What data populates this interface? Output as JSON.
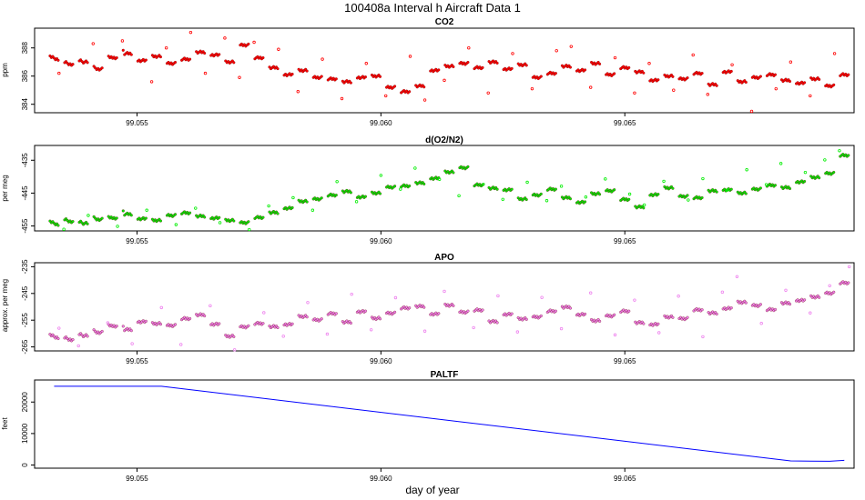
{
  "figure": {
    "title": "100408a   Interval h Aircraft Data 1",
    "xlabel": "day of year"
  },
  "chart_data": [
    {
      "type": "scatter",
      "title": "CO2",
      "ylabel": "ppm",
      "xlim": [
        99.0529,
        99.0697
      ],
      "ylim": [
        383.4,
        389.4
      ],
      "xticks": [
        99.055,
        99.06,
        99.065
      ],
      "xtick_labels": [
        "99.055",
        "99.060",
        "99.065"
      ],
      "yticks": [
        384,
        386,
        388
      ],
      "ytick_labels": [
        "384",
        "386",
        "388"
      ],
      "series": [
        {
          "color": "#ff0000",
          "points_x": [
            99.0533,
            99.0536,
            99.0539,
            99.0542,
            99.0545,
            99.0548,
            99.0551,
            99.0554,
            99.0557,
            99.056,
            99.0563,
            99.0566,
            99.0569,
            99.0572,
            99.0575,
            99.0578,
            99.0581,
            99.0584,
            99.0587,
            99.059,
            99.0593,
            99.0596,
            99.0599,
            99.0602,
            99.0605,
            99.0608,
            99.0611,
            99.0614,
            99.0617,
            99.062,
            99.0623,
            99.0626,
            99.0629,
            99.0632,
            99.0635,
            99.0638,
            99.0641,
            99.0644,
            99.0647,
            99.065,
            99.0653,
            99.0656,
            99.0659,
            99.0662,
            99.0665,
            99.0668,
            99.0671,
            99.0674,
            99.0677,
            99.068,
            99.0683,
            99.0686,
            99.0689,
            99.0692,
            99.0695
          ],
          "points_y": [
            387.2,
            386.8,
            387.0,
            386.5,
            387.3,
            387.6,
            387.1,
            387.4,
            386.9,
            387.2,
            387.7,
            387.5,
            387.0,
            388.2,
            387.3,
            386.6,
            386.1,
            386.4,
            385.9,
            385.8,
            385.6,
            385.9,
            386.0,
            385.2,
            384.9,
            385.3,
            386.4,
            386.7,
            386.9,
            386.6,
            387.0,
            386.5,
            386.8,
            385.9,
            386.2,
            386.7,
            386.4,
            386.9,
            386.1,
            386.6,
            386.3,
            385.7,
            386.0,
            385.8,
            386.2,
            385.4,
            386.3,
            385.6,
            385.9,
            386.1,
            385.7,
            385.5,
            385.8,
            385.3,
            386.1
          ],
          "outliers_x": [
            99.0534,
            99.0541,
            99.0547,
            99.0553,
            99.0556,
            99.0561,
            99.0564,
            99.0568,
            99.0571,
            99.0574,
            99.0579,
            99.0583,
            99.0588,
            99.0592,
            99.0597,
            99.0601,
            99.0606,
            99.0609,
            99.0613,
            99.0618,
            99.0622,
            99.0627,
            99.0631,
            99.0636,
            99.0639,
            99.0643,
            99.0648,
            99.0652,
            99.0655,
            99.066,
            99.0664,
            99.0667,
            99.0672,
            99.0676,
            99.0681,
            99.0684,
            99.0688,
            99.0693
          ],
          "outliers_y": [
            386.2,
            388.3,
            388.5,
            385.6,
            388.0,
            389.1,
            386.2,
            388.7,
            385.9,
            388.4,
            387.9,
            384.9,
            387.2,
            384.4,
            386.9,
            384.6,
            387.4,
            384.3,
            385.7,
            388.0,
            384.8,
            387.6,
            385.1,
            387.8,
            388.1,
            385.2,
            387.3,
            384.8,
            386.9,
            385.0,
            387.5,
            384.7,
            386.8,
            383.5,
            385.1,
            387.0,
            384.6,
            387.6
          ]
        }
      ]
    },
    {
      "type": "scatter",
      "title": "d(O2/N2)",
      "ylabel": "per meg",
      "xlim": [
        99.0529,
        99.0697
      ],
      "ylim": [
        -456.5,
        -430.5
      ],
      "xticks": [
        99.055,
        99.06,
        99.065
      ],
      "xtick_labels": [
        "99.055",
        "99.060",
        "99.065"
      ],
      "yticks": [
        -455,
        -445,
        -435
      ],
      "ytick_labels": [
        "-455",
        "-445",
        "-435"
      ],
      "series": [
        {
          "color": "#00ee00",
          "points_x": [
            99.0533,
            99.0536,
            99.0539,
            99.0542,
            99.0545,
            99.0548,
            99.0551,
            99.0554,
            99.0557,
            99.056,
            99.0563,
            99.0566,
            99.0569,
            99.0572,
            99.0575,
            99.0578,
            99.0581,
            99.0584,
            99.0587,
            99.059,
            99.0593,
            99.0596,
            99.0599,
            99.0602,
            99.0605,
            99.0608,
            99.0611,
            99.0614,
            99.0617,
            99.062,
            99.0623,
            99.0626,
            99.0629,
            99.0632,
            99.0635,
            99.0638,
            99.0641,
            99.0644,
            99.0647,
            99.065,
            99.0653,
            99.0656,
            99.0659,
            99.0662,
            99.0665,
            99.0668,
            99.0671,
            99.0674,
            99.0677,
            99.068,
            99.0683,
            99.0686,
            99.0689,
            99.0692,
            99.0695
          ],
          "points_y": [
            -454.5,
            -453.8,
            -454.2,
            -453.0,
            -452.6,
            -451.4,
            -452.8,
            -453.3,
            -451.8,
            -451.0,
            -452.0,
            -452.6,
            -453.3,
            -454.0,
            -452.4,
            -450.9,
            -449.6,
            -447.5,
            -446.8,
            -445.6,
            -444.5,
            -446.2,
            -445.0,
            -443.2,
            -442.8,
            -441.9,
            -440.5,
            -438.6,
            -437.3,
            -442.5,
            -443.5,
            -444.0,
            -446.8,
            -445.6,
            -443.8,
            -446.4,
            -447.8,
            -445.2,
            -444.3,
            -446.9,
            -449.2,
            -445.5,
            -443.4,
            -446.0,
            -446.4,
            -444.3,
            -444.0,
            -445.0,
            -443.8,
            -442.6,
            -443.3,
            -441.6,
            -440.2,
            -439.0,
            -433.5
          ],
          "outliers_x": [
            99.0535,
            99.054,
            99.0546,
            99.0552,
            99.0558,
            99.0562,
            99.0567,
            99.0573,
            99.0577,
            99.0582,
            99.0586,
            99.0591,
            99.0595,
            99.06,
            99.0604,
            99.0607,
            99.0612,
            99.0616,
            99.0621,
            99.0625,
            99.063,
            99.0634,
            99.0637,
            99.0642,
            99.0646,
            99.0651,
            99.0654,
            99.0658,
            99.0663,
            99.0666,
            99.0671,
            99.0675,
            99.0679,
            99.0682,
            99.0687,
            99.0691,
            99.0694
          ],
          "outliers_y": [
            -456.0,
            -451.8,
            -455.1,
            -450.2,
            -454.6,
            -449.6,
            -454.0,
            -456.1,
            -448.9,
            -446.4,
            -450.2,
            -441.5,
            -447.6,
            -439.6,
            -443.8,
            -437.4,
            -440.8,
            -445.8,
            -442.3,
            -446.9,
            -441.7,
            -447.3,
            -442.9,
            -446.2,
            -440.7,
            -445.3,
            -448.6,
            -441.4,
            -447.1,
            -440.6,
            -444.1,
            -437.9,
            -442.4,
            -436.0,
            -438.7,
            -434.9,
            -432.1
          ]
        }
      ]
    },
    {
      "type": "scatter",
      "title": "APO",
      "ylabel": "approx. per meg",
      "xlim": [
        99.0529,
        99.0697
      ],
      "ylim": [
        -266.5,
        -233.5
      ],
      "xticks": [
        99.055,
        99.06,
        99.065
      ],
      "xtick_labels": [
        "99.055",
        "99.060",
        "99.065"
      ],
      "yticks": [
        -265,
        -255,
        -245,
        -235
      ],
      "ytick_labels": [
        "-265",
        "-255",
        "-245",
        "-235"
      ],
      "series": [
        {
          "color": "#ee82ee",
          "points_x": [
            99.0533,
            99.0536,
            99.0539,
            99.0542,
            99.0545,
            99.0548,
            99.0551,
            99.0554,
            99.0557,
            99.056,
            99.0563,
            99.0566,
            99.0569,
            99.0572,
            99.0575,
            99.0578,
            99.0581,
            99.0584,
            99.0587,
            99.059,
            99.0593,
            99.0596,
            99.0599,
            99.0602,
            99.0605,
            99.0608,
            99.0611,
            99.0614,
            99.0617,
            99.062,
            99.0623,
            99.0626,
            99.0629,
            99.0632,
            99.0635,
            99.0638,
            99.0641,
            99.0644,
            99.0647,
            99.065,
            99.0653,
            99.0656,
            99.0659,
            99.0662,
            99.0665,
            99.0668,
            99.0671,
            99.0674,
            99.0677,
            99.068,
            99.0683,
            99.0686,
            99.0689,
            99.0692,
            99.0695
          ],
          "points_y": [
            -261.5,
            -262.5,
            -260.8,
            -259.6,
            -257.2,
            -258.5,
            -255.6,
            -256.3,
            -257.0,
            -254.4,
            -253.0,
            -256.5,
            -261.0,
            -257.5,
            -256.2,
            -257.4,
            -256.6,
            -253.6,
            -254.9,
            -252.5,
            -255.7,
            -251.8,
            -254.3,
            -252.4,
            -250.4,
            -249.8,
            -252.7,
            -249.4,
            -252.0,
            -251.2,
            -255.5,
            -252.8,
            -254.5,
            -253.8,
            -251.6,
            -250.1,
            -252.9,
            -255.2,
            -253.4,
            -251.6,
            -255.9,
            -256.6,
            -253.8,
            -254.4,
            -251.1,
            -252.3,
            -250.6,
            -248.3,
            -249.5,
            -251.0,
            -248.6,
            -247.6,
            -246.3,
            -244.9,
            -241.0
          ],
          "outliers_x": [
            99.0534,
            99.0538,
            99.0544,
            99.0549,
            99.0555,
            99.0559,
            99.0565,
            99.057,
            99.0576,
            99.058,
            99.0585,
            99.0589,
            99.0594,
            99.0598,
            99.0603,
            99.0609,
            99.0613,
            99.0619,
            99.0624,
            99.0628,
            99.0633,
            99.0637,
            99.0643,
            99.0648,
            99.0652,
            99.0657,
            99.0661,
            99.0666,
            99.067,
            99.0673,
            99.0678,
            99.0683,
            99.0688,
            99.0692,
            99.0696
          ],
          "outliers_y": [
            -258.0,
            -264.6,
            -256.0,
            -263.8,
            -250.3,
            -264.1,
            -249.6,
            -266.1,
            -252.2,
            -261.0,
            -248.4,
            -260.2,
            -245.3,
            -258.6,
            -246.6,
            -259.1,
            -244.2,
            -257.8,
            -245.9,
            -259.4,
            -246.5,
            -258.2,
            -244.8,
            -260.5,
            -247.5,
            -259.7,
            -246.0,
            -261.2,
            -244.5,
            -238.7,
            -256.2,
            -243.8,
            -252.3,
            -242.1,
            -235.0
          ]
        }
      ]
    },
    {
      "type": "line",
      "title": "PALTF",
      "ylabel": "feet",
      "xlim": [
        99.0529,
        99.0697
      ],
      "ylim": [
        -1000,
        27000
      ],
      "xticks": [
        99.055,
        99.06,
        99.065
      ],
      "xtick_labels": [
        "99.055",
        "99.060",
        "99.065"
      ],
      "yticks": [
        0,
        10000,
        20000
      ],
      "ytick_labels": [
        "0",
        "10000",
        "20000"
      ],
      "series": [
        {
          "color": "#0000ff",
          "x": [
            99.0533,
            99.0555,
            99.0684,
            99.0692,
            99.0695
          ],
          "y": [
            25000,
            25000,
            1300,
            1200,
            1500
          ]
        }
      ]
    }
  ]
}
